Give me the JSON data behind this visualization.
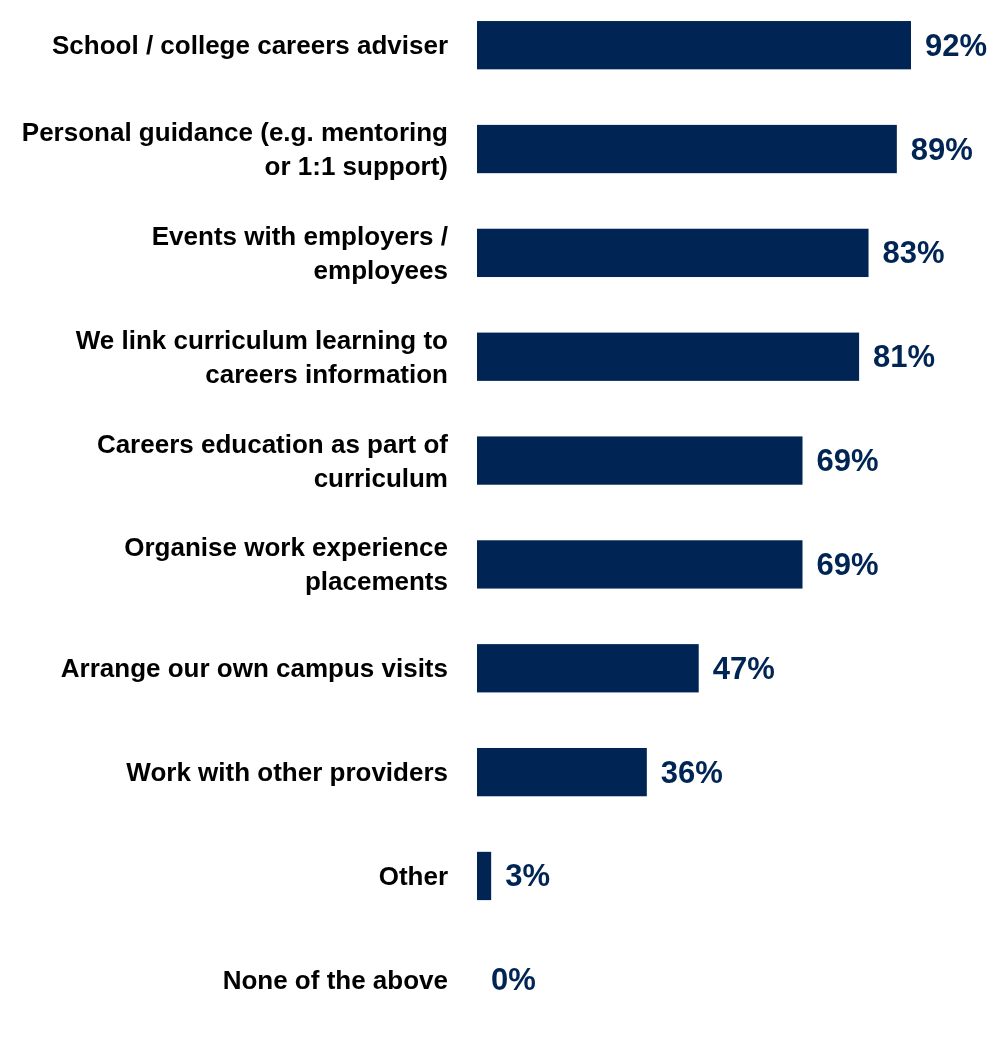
{
  "chart_data": {
    "type": "bar",
    "orientation": "horizontal",
    "categories": [
      "School / college careers adviser",
      "Personal guidance (e.g. mentoring or 1:1 support)",
      "Events with employers / employees",
      "We link curriculum learning to careers information",
      "Careers education as part of curriculum",
      "Organise work experience placements",
      "Arrange our own campus visits",
      "Work with other providers",
      "Other",
      "None of the above"
    ],
    "values": [
      92,
      89,
      83,
      81,
      69,
      69,
      47,
      36,
      3,
      0
    ],
    "value_labels": [
      "92%",
      "89%",
      "83%",
      "81%",
      "69%",
      "69%",
      "47%",
      "36%",
      "3%",
      "0%"
    ],
    "color": "#002554"
  }
}
